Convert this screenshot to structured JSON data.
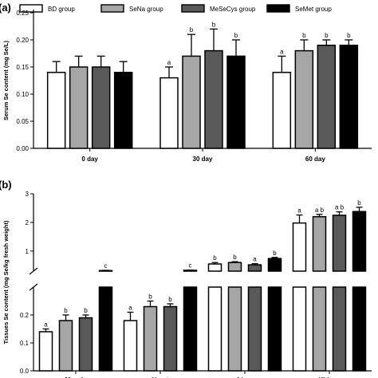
{
  "legend": {
    "items": [
      {
        "label": "BD group",
        "color": "#ffffff"
      },
      {
        "label": "SeNa group",
        "color": "#a6a6a6"
      },
      {
        "label": "MeSeCys group",
        "color": "#595959"
      },
      {
        "label": "SeMet group",
        "color": "#000000"
      }
    ]
  },
  "chart_data": [
    {
      "type": "bar",
      "panel": "(a)",
      "ylabel": "Serum Se content (mg Se/L)",
      "ylim": [
        0,
        0.25
      ],
      "yticks": [
        "0.00",
        "0.05",
        "0.10",
        "0.15",
        "0.20",
        "0.25"
      ],
      "categories": [
        "0 day",
        "30 day",
        "60 day"
      ],
      "series": [
        {
          "name": "BD group",
          "color": "#ffffff",
          "values": [
            0.14,
            0.13,
            0.14
          ],
          "errors": [
            0.02,
            0.02,
            0.03
          ],
          "letters": [
            "",
            "a",
            "a"
          ]
        },
        {
          "name": "SeNa group",
          "color": "#a6a6a6",
          "values": [
            0.15,
            0.17,
            0.18
          ],
          "errors": [
            0.02,
            0.04,
            0.02
          ],
          "letters": [
            "",
            "b",
            "b"
          ]
        },
        {
          "name": "MeSeCys group",
          "color": "#595959",
          "values": [
            0.15,
            0.18,
            0.19
          ],
          "errors": [
            0.02,
            0.04,
            0.01
          ],
          "letters": [
            "",
            "b",
            "b"
          ]
        },
        {
          "name": "SeMet group",
          "color": "#000000",
          "values": [
            0.14,
            0.17,
            0.19
          ],
          "errors": [
            0.02,
            0.03,
            0.01
          ],
          "letters": [
            "",
            "b",
            "b"
          ]
        }
      ]
    },
    {
      "type": "bar",
      "panel": "(b)",
      "ylabel": "Tissues Se content (mg Se/kg fresh weight)",
      "broken_axis": true,
      "lower_ylim": [
        0,
        0.3
      ],
      "lower_yticks": [
        "0.0",
        "0.1",
        "0.2"
      ],
      "upper_ylim": [
        0.3,
        3
      ],
      "upper_yticks": [
        "1",
        "2",
        "3"
      ],
      "categories": [
        "Muscle",
        "Heart",
        "Liver",
        "Kidney"
      ],
      "series": [
        {
          "name": "BD group",
          "color": "#ffffff",
          "values": [
            0.14,
            0.18,
            0.55,
            1.98
          ],
          "errors": [
            0.01,
            0.03,
            0.05,
            0.28
          ],
          "letters": [
            "a",
            "a",
            "b",
            "a"
          ]
        },
        {
          "name": "SeNa group",
          "color": "#a6a6a6",
          "values": [
            0.18,
            0.23,
            0.6,
            2.2
          ],
          "errors": [
            0.02,
            0.02,
            0.03,
            0.08
          ],
          "letters": [
            "b",
            "b",
            "b",
            "a b"
          ]
        },
        {
          "name": "MeSeCys group",
          "color": "#595959",
          "values": [
            0.19,
            0.23,
            0.52,
            2.25
          ],
          "errors": [
            0.01,
            0.01,
            0.04,
            0.12
          ],
          "letters": [
            "b",
            "b",
            "a",
            "a b"
          ]
        },
        {
          "name": "SeMet group",
          "color": "#000000",
          "values": [
            0.32,
            0.33,
            0.74,
            2.38
          ],
          "errors": [
            0.01,
            0.01,
            0.04,
            0.15
          ],
          "letters": [
            "c",
            "c",
            "b",
            "b"
          ]
        }
      ]
    }
  ]
}
